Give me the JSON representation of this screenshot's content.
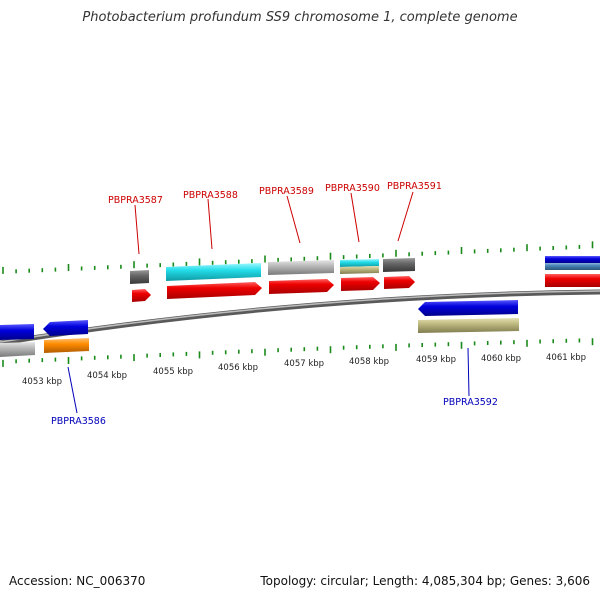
{
  "title": "Photobacterium profundum SS9 chromosome 1, complete genome",
  "footer": {
    "accession": "Accession: NC_006370",
    "topology": "Topology: circular; Length: 4,085,304 bp; Genes: 3,606"
  },
  "colors": {
    "tick": "#1a8a1a",
    "forward_label": "#cc0000",
    "reverse_label": "#0000bb",
    "backbone": "#808080"
  },
  "scale": {
    "unit": "kbp",
    "labels": [
      "4053 kbp",
      "4054 kbp",
      "4055 kbp",
      "4056 kbp",
      "4057 kbp",
      "4058 kbp",
      "4059 kbp",
      "4060 kbp",
      "4061 kbp"
    ]
  },
  "gene_labels": [
    {
      "text": "PBPRA3587",
      "strand": "forward"
    },
    {
      "text": "PBPRA3588",
      "strand": "forward"
    },
    {
      "text": "PBPRA3589",
      "strand": "forward"
    },
    {
      "text": "PBPRA3590",
      "strand": "forward"
    },
    {
      "text": "PBPRA3591",
      "strand": "forward"
    },
    {
      "text": "PBPRA3586",
      "strand": "reverse"
    },
    {
      "text": "PBPRA3592",
      "strand": "reverse"
    }
  ],
  "features": [
    {
      "name": "forward-cds",
      "strand": "forward",
      "color": "#ee0000"
    },
    {
      "name": "feature-cyan",
      "strand": "forward",
      "color": "#22dde8"
    },
    {
      "name": "feature-light-gray",
      "strand": "forward",
      "color": "#b8b8b8"
    },
    {
      "name": "feature-dark-gray",
      "strand": "forward",
      "color": "#666666"
    },
    {
      "name": "feature-khaki",
      "strand": "forward",
      "color": "#bdb880"
    },
    {
      "name": "reverse-cds",
      "strand": "reverse",
      "color": "#0000dd"
    },
    {
      "name": "feature-orange",
      "strand": "reverse",
      "color": "#ff8c00"
    },
    {
      "name": "feature-steelblue",
      "strand": "reverse",
      "color": "#4682b4"
    }
  ]
}
